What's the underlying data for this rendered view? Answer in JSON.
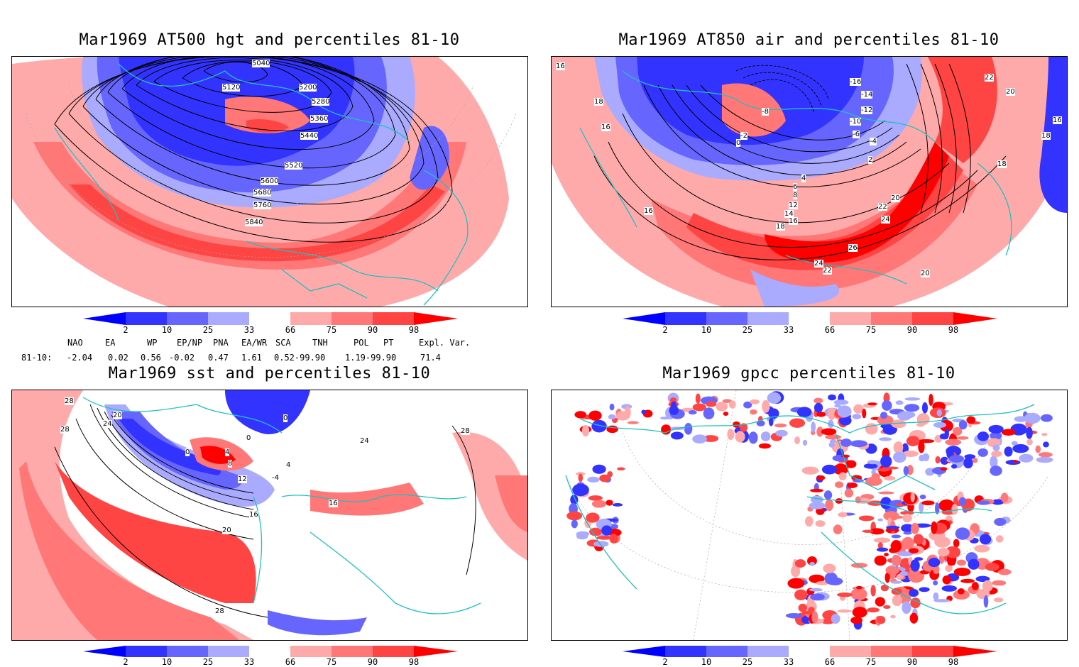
{
  "panels": [
    {
      "title": "Mar1969 AT500 hgt and percentiles 81-10",
      "contour_labels": [
        "5040",
        "5120",
        "5200",
        "5280",
        "5360",
        "5440",
        "5520",
        "5600",
        "5680",
        "5760",
        "5840"
      ]
    },
    {
      "title": "Mar1969 AT850 air and percentiles 81-10",
      "contour_labels": [
        "16",
        "18",
        "16",
        "-16",
        "-14",
        "-12",
        "-10",
        "-8",
        "-6",
        "-4",
        "-2",
        "0",
        "2",
        "4",
        "6",
        "8",
        "12",
        "14",
        "16",
        "18",
        "20",
        "22",
        "24",
        "26",
        "24",
        "22",
        "20",
        "22",
        "20",
        "18",
        "16",
        "16",
        "18"
      ]
    },
    {
      "title": "Mar1969 sst and percentiles 81-10",
      "contour_labels": [
        "28",
        "28",
        "24",
        "20",
        "0",
        "0",
        "4",
        "8",
        "12",
        "16",
        "20",
        "28",
        "28",
        "16",
        "4",
        "-4",
        "0",
        "24"
      ]
    },
    {
      "title": "Mar1969 gpcc percentiles 81-10",
      "contour_labels": []
    }
  ],
  "colorbar": {
    "labels": [
      "2",
      "10",
      "25",
      "33",
      "66",
      "75",
      "90",
      "98"
    ],
    "colors": {
      "blue_dark": "#0000ff",
      "blue_mid": "#3333ff",
      "blue_light": "#6666ff",
      "blue_pale": "#aaaaff",
      "red_pale": "#ffaaaa",
      "red_light": "#ff7777",
      "red_mid": "#ff4444",
      "red_dark": "#ff0000",
      "coast": "#20c0c0"
    }
  },
  "indices": {
    "headers": [
      "NAO",
      "EA",
      "WP",
      "EP/NP",
      "PNA",
      "EA/WR",
      "SCA",
      "TNH",
      "POL",
      "PT",
      "Expl. Var."
    ],
    "row_label": "81-10:",
    "values": [
      "-2.04",
      "0.02",
      "0.56",
      "-0.02",
      "0.47",
      "1.61",
      "0.52-99.90",
      "",
      "1.19-99.90",
      "",
      "71.4"
    ]
  }
}
